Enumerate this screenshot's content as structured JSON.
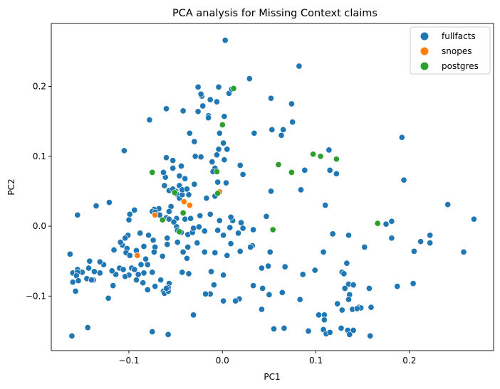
{
  "chart_data": {
    "type": "scatter",
    "title": "PCA analysis for Missing Context claims",
    "xlabel": "PC1",
    "ylabel": "PC2",
    "xlim": [
      -0.183,
      0.29
    ],
    "ylim": [
      -0.178,
      0.29
    ],
    "xticks": [
      -0.1,
      0.0,
      0.1,
      0.2
    ],
    "xtick_labels": [
      "−0.1",
      "0.0",
      "0.1",
      "0.2"
    ],
    "yticks": [
      -0.1,
      0.0,
      0.1,
      0.2
    ],
    "ytick_labels": [
      "−0.1",
      "0.0",
      "0.1",
      "0.2"
    ],
    "grid": false,
    "legend_position": "top-right",
    "series": [
      {
        "name": "fullfacts",
        "color": "#1f77b4",
        "points": [
          [
            0.003,
            0.266
          ],
          [
            0.082,
            0.229
          ],
          [
            0.029,
            0.211
          ],
          [
            -0.026,
            0.199
          ],
          [
            -0.004,
            0.199
          ],
          [
            0.007,
            0.19
          ],
          [
            0.01,
            0.196
          ],
          [
            -0.022,
            0.186
          ],
          [
            -0.023,
            0.189
          ],
          [
            -0.042,
            0.165
          ],
          [
            -0.06,
            0.168
          ],
          [
            -0.078,
            0.152
          ],
          [
            -0.013,
            0.181
          ],
          [
            -0.021,
            0.172
          ],
          [
            -0.006,
            0.178
          ],
          [
            -0.015,
            0.158
          ],
          [
            -0.015,
            0.155
          ],
          [
            0.002,
            0.157
          ],
          [
            -0.026,
            0.164
          ],
          [
            0.052,
            0.183
          ],
          [
            0.074,
            0.175
          ],
          [
            0.075,
            0.149
          ],
          [
            0.053,
            0.138
          ],
          [
            0.063,
            0.13
          ],
          [
            0.065,
            0.138
          ],
          [
            0.034,
            0.133
          ],
          [
            0.192,
            0.127
          ],
          [
            0.114,
            0.109
          ],
          [
            -0.035,
            0.133
          ],
          [
            -0.003,
            0.133
          ],
          [
            -0.105,
            0.108
          ],
          [
            -0.03,
            0.121
          ],
          [
            0.001,
            0.119
          ],
          [
            -0.004,
            0.11
          ],
          [
            -0.006,
            0.102
          ],
          [
            0.005,
            0.11
          ],
          [
            -0.029,
            0.1
          ],
          [
            -0.06,
            0.098
          ],
          [
            -0.023,
            0.099
          ],
          [
            -0.053,
            0.094
          ],
          [
            0.115,
            0.08
          ],
          [
            0.088,
            0.08
          ],
          [
            0.122,
            0.075
          ],
          [
            0.194,
            0.066
          ],
          [
            -0.011,
            0.092
          ],
          [
            -0.008,
            0.083
          ],
          [
            -0.01,
            0.078
          ],
          [
            0.002,
            0.095
          ],
          [
            0.019,
            0.087
          ],
          [
            0.022,
            0.074
          ],
          [
            -0.044,
            0.086
          ],
          [
            -0.053,
            0.083
          ],
          [
            -0.061,
            0.07
          ],
          [
            -0.063,
            0.077
          ],
          [
            -0.046,
            0.072
          ],
          [
            -0.04,
            0.068
          ],
          [
            -0.03,
            0.06
          ],
          [
            -0.046,
            0.058
          ],
          [
            -0.05,
            0.05
          ],
          [
            -0.062,
            0.058
          ],
          [
            -0.057,
            0.051
          ],
          [
            -0.053,
            0.053
          ],
          [
            -0.049,
            0.046
          ],
          [
            -0.036,
            0.045
          ],
          [
            -0.046,
            0.04
          ],
          [
            -0.043,
            0.045
          ],
          [
            -0.043,
            0.052
          ],
          [
            -0.038,
            0.053
          ],
          [
            -0.005,
            0.063
          ],
          [
            0.004,
            0.062
          ],
          [
            0.052,
            0.05
          ],
          [
            0.084,
            0.052
          ],
          [
            -0.017,
            0.04
          ],
          [
            -0.008,
            0.043
          ],
          [
            -0.055,
            0.028
          ],
          [
            -0.057,
            0.021
          ],
          [
            -0.068,
            0.025
          ],
          [
            -0.073,
            0.024
          ],
          [
            -0.075,
            0.021
          ],
          [
            -0.072,
            0.02
          ],
          [
            -0.094,
            0.023
          ],
          [
            -0.099,
            0.017
          ],
          [
            -0.1,
            0.009
          ],
          [
            -0.121,
            0.034
          ],
          [
            -0.135,
            0.029
          ],
          [
            -0.155,
            0.016
          ],
          [
            -0.067,
            0.016
          ],
          [
            -0.06,
            0.012
          ],
          [
            -0.057,
            0.01
          ],
          [
            -0.04,
            0.01
          ],
          [
            -0.034,
            0.011
          ],
          [
            -0.049,
            0.011
          ],
          [
            -0.052,
            0.006
          ],
          [
            -0.049,
            -0.001
          ],
          [
            -0.048,
            -0.006
          ],
          [
            -0.044,
            -0.009
          ],
          [
            -0.037,
            -0.012
          ],
          [
            -0.032,
            -0.009
          ],
          [
            -0.031,
            -0.003
          ],
          [
            -0.025,
            -0.001
          ],
          [
            -0.019,
            -0.007
          ],
          [
            -0.005,
            -0.006
          ],
          [
            0.001,
            -0.013
          ],
          [
            0.008,
            -0.002
          ],
          [
            0.017,
            -0.01
          ],
          [
            0.02,
            0.005
          ],
          [
            0.022,
            -0.003
          ],
          [
            0.033,
            -0.005
          ],
          [
            0.047,
            0.014
          ],
          [
            0.11,
            0.03
          ],
          [
            0.181,
            0.007
          ],
          [
            0.241,
            0.031
          ],
          [
            0.269,
            0.01
          ],
          [
            0.175,
            0.003
          ],
          [
            0.011,
            0.008
          ],
          [
            0.009,
            0.013
          ],
          [
            -0.003,
            0.008
          ],
          [
            -0.013,
            0.017
          ],
          [
            -0.024,
            0.015
          ],
          [
            0.118,
            -0.011
          ],
          [
            0.135,
            -0.013
          ],
          [
            0.181,
            -0.017
          ],
          [
            0.222,
            -0.013
          ],
          [
            0.222,
            -0.024
          ],
          [
            0.212,
            -0.022
          ],
          [
            0.152,
            -0.03
          ],
          [
            0.205,
            -0.036
          ],
          [
            0.258,
            -0.037
          ],
          [
            0.108,
            -0.037
          ],
          [
            0.051,
            -0.037
          ],
          [
            0.032,
            -0.028
          ],
          [
            0.03,
            -0.03
          ],
          [
            0.019,
            -0.036
          ],
          [
            0.009,
            -0.025
          ],
          [
            0.005,
            -0.042
          ],
          [
            -0.008,
            -0.038
          ],
          [
            -0.027,
            -0.024
          ],
          [
            -0.019,
            -0.037
          ],
          [
            -0.037,
            -0.03
          ],
          [
            -0.042,
            -0.037
          ],
          [
            -0.038,
            -0.046
          ],
          [
            -0.048,
            -0.023
          ],
          [
            -0.059,
            -0.017
          ],
          [
            -0.059,
            -0.026
          ],
          [
            -0.064,
            -0.043
          ],
          [
            -0.072,
            -0.03
          ],
          [
            -0.073,
            -0.037
          ],
          [
            -0.08,
            -0.055
          ],
          [
            -0.082,
            -0.047
          ],
          [
            -0.084,
            -0.029
          ],
          [
            -0.074,
            -0.02
          ],
          [
            -0.079,
            -0.013
          ],
          [
            -0.088,
            -0.01
          ],
          [
            -0.101,
            -0.013
          ],
          [
            -0.104,
            -0.017
          ],
          [
            -0.107,
            -0.027
          ],
          [
            -0.109,
            -0.023
          ],
          [
            -0.116,
            -0.034
          ],
          [
            -0.102,
            -0.032
          ],
          [
            -0.103,
            -0.038
          ],
          [
            -0.099,
            -0.042
          ],
          [
            -0.092,
            -0.035
          ],
          [
            -0.097,
            -0.06
          ],
          [
            -0.094,
            -0.062
          ],
          [
            -0.087,
            -0.055
          ],
          [
            -0.084,
            -0.067
          ],
          [
            -0.09,
            -0.069
          ],
          [
            -0.1,
            -0.07
          ],
          [
            -0.104,
            -0.072
          ],
          [
            -0.11,
            -0.06
          ],
          [
            -0.106,
            -0.062
          ],
          [
            -0.114,
            -0.069
          ],
          [
            -0.118,
            -0.064
          ],
          [
            -0.127,
            -0.055
          ],
          [
            -0.131,
            -0.051
          ],
          [
            -0.131,
            -0.067
          ],
          [
            -0.137,
            -0.065
          ],
          [
            -0.142,
            -0.05
          ],
          [
            -0.143,
            -0.06
          ],
          [
            -0.145,
            -0.075
          ],
          [
            -0.15,
            -0.066
          ],
          [
            -0.155,
            -0.062
          ],
          [
            -0.16,
            -0.067
          ],
          [
            -0.163,
            -0.04
          ],
          [
            -0.155,
            -0.066
          ],
          [
            -0.156,
            -0.071
          ],
          [
            -0.154,
            -0.078
          ],
          [
            -0.16,
            -0.08
          ],
          [
            -0.157,
            -0.093
          ],
          [
            -0.138,
            -0.077
          ],
          [
            -0.144,
            -0.145
          ],
          [
            -0.161,
            -0.157
          ],
          [
            -0.075,
            -0.066
          ],
          [
            -0.092,
            -0.077
          ],
          [
            -0.085,
            -0.081
          ],
          [
            -0.072,
            -0.086
          ],
          [
            -0.08,
            -0.091
          ],
          [
            -0.066,
            -0.077
          ],
          [
            -0.063,
            -0.093
          ],
          [
            -0.062,
            -0.096
          ],
          [
            -0.057,
            -0.082
          ],
          [
            -0.043,
            -0.066
          ],
          [
            -0.036,
            -0.068
          ],
          [
            -0.058,
            -0.093
          ],
          [
            -0.058,
            -0.088
          ],
          [
            -0.012,
            -0.065
          ],
          [
            0.001,
            -0.07
          ],
          [
            -0.009,
            -0.084
          ],
          [
            -0.013,
            -0.097
          ],
          [
            -0.018,
            -0.097
          ],
          [
            0.001,
            -0.107
          ],
          [
            0.042,
            -0.06
          ],
          [
            0.049,
            -0.057
          ],
          [
            0.067,
            -0.058
          ],
          [
            0.086,
            -0.069
          ],
          [
            0.099,
            -0.063
          ],
          [
            0.133,
            -0.053
          ],
          [
            0.128,
            -0.066
          ],
          [
            0.13,
            -0.068
          ],
          [
            0.135,
            -0.083
          ],
          [
            0.131,
            -0.089
          ],
          [
            0.14,
            -0.084
          ],
          [
            0.136,
            -0.098
          ],
          [
            0.135,
            -0.105
          ],
          [
            0.157,
            -0.089
          ],
          [
            0.187,
            -0.086
          ],
          [
            0.204,
            -0.082
          ],
          [
            0.146,
            -0.116
          ],
          [
            0.148,
            -0.117
          ],
          [
            0.159,
            -0.116
          ],
          [
            0.123,
            -0.111
          ],
          [
            0.128,
            -0.12
          ],
          [
            0.139,
            -0.119
          ],
          [
            0.144,
            -0.118
          ],
          [
            0.103,
            -0.127
          ],
          [
            0.109,
            -0.127
          ],
          [
            0.109,
            -0.134
          ],
          [
            0.108,
            -0.148
          ],
          [
            0.111,
            -0.154
          ],
          [
            0.115,
            -0.152
          ],
          [
            0.127,
            -0.146
          ],
          [
            0.134,
            -0.149
          ],
          [
            0.14,
            -0.149
          ],
          [
            0.136,
            -0.155
          ],
          [
            0.158,
            -0.157
          ],
          [
            0.092,
            -0.15
          ],
          [
            0.066,
            -0.146
          ],
          [
            0.055,
            -0.147
          ],
          [
            0.033,
            -0.085
          ],
          [
            0.043,
            -0.089
          ],
          [
            0.05,
            -0.098
          ],
          [
            0.064,
            -0.095
          ],
          [
            0.083,
            -0.105
          ],
          [
            0.018,
            -0.104
          ],
          [
            0.042,
            -0.119
          ],
          [
            0.014,
            -0.107
          ],
          [
            -0.031,
            -0.127
          ],
          [
            -0.06,
            -0.089
          ],
          [
            -0.058,
            -0.155
          ],
          [
            -0.075,
            -0.151
          ],
          [
            -0.14,
            -0.077
          ],
          [
            -0.122,
            -0.103
          ],
          [
            -0.117,
            -0.085
          ]
        ]
      },
      {
        "name": "snopes",
        "color": "#ff7f0e",
        "points": [
          [
            -0.041,
            0.035
          ],
          [
            -0.035,
            0.03
          ],
          [
            -0.003,
            0.049
          ],
          [
            -0.072,
            0.016
          ],
          [
            -0.091,
            -0.042
          ]
        ]
      },
      {
        "name": "postgres",
        "color": "#2ca02c",
        "points": [
          [
            0.012,
            0.197
          ],
          [
            0.0,
            0.145
          ],
          [
            0.097,
            0.103
          ],
          [
            0.105,
            0.1
          ],
          [
            0.122,
            0.096
          ],
          [
            0.06,
            0.088
          ],
          [
            0.074,
            0.077
          ],
          [
            -0.075,
            0.077
          ],
          [
            -0.006,
            0.078
          ],
          [
            -0.005,
            0.047
          ],
          [
            -0.051,
            0.048
          ],
          [
            -0.042,
            0.019
          ],
          [
            -0.064,
            0.009
          ],
          [
            -0.046,
            -0.008
          ],
          [
            0.054,
            -0.005
          ],
          [
            0.166,
            0.004
          ]
        ]
      }
    ]
  }
}
